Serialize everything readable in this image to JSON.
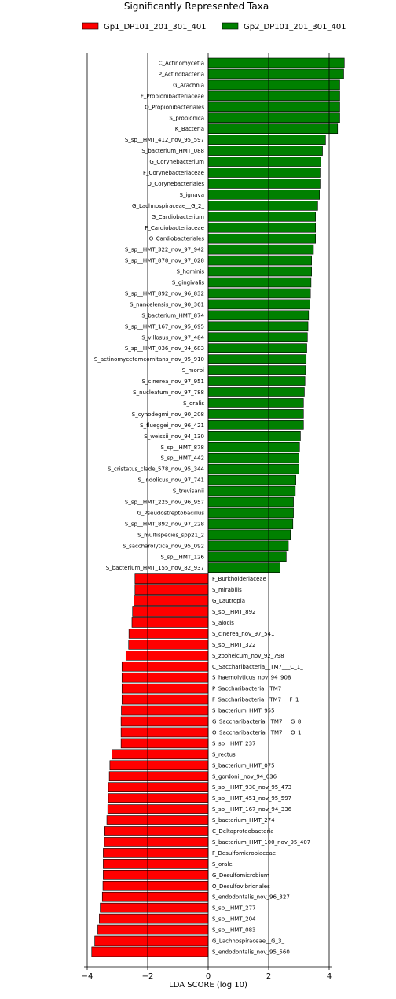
{
  "chart_data": {
    "type": "bar",
    "orientation": "horizontal",
    "title": "Significantly Represented Taxa",
    "xlabel": "LDA SCORE (log 10)",
    "xlim": [
      -4,
      4
    ],
    "xticks": [
      -4,
      -2,
      0,
      2,
      4
    ],
    "xtick_labels": [
      "−4",
      "−2",
      "0",
      "2",
      "4"
    ],
    "grid": "vertical at -4, -2, 2, 4",
    "legend_position": "top",
    "series": [
      {
        "name": "Gp1_DP101_201_301_401",
        "color": "#ff0000",
        "bars": [
          {
            "label": "F_Burkholderiaceae",
            "value": -2.42
          },
          {
            "label": "S_mirabilis",
            "value": -2.42
          },
          {
            "label": "G_Lautropia",
            "value": -2.45
          },
          {
            "label": "S_sp__HMT_892",
            "value": -2.5
          },
          {
            "label": "S_alocis",
            "value": -2.52
          },
          {
            "label": "S_cinerea_nov_97_541",
            "value": -2.62
          },
          {
            "label": "S_sp__HMT_322",
            "value": -2.63
          },
          {
            "label": "S_zoohelcum_nov_92_798",
            "value": -2.72
          },
          {
            "label": "C_Saccharibacteria__TM7___C_1_",
            "value": -2.85
          },
          {
            "label": "S_haemolyticus_nov_94_908",
            "value": -2.85
          },
          {
            "label": "P_Saccharibacteria__TM7_",
            "value": -2.85
          },
          {
            "label": "F_Saccharibacteria__TM7___F_1_",
            "value": -2.85
          },
          {
            "label": "S_bacterium_HMT_955",
            "value": -2.87
          },
          {
            "label": "G_Saccharibacteria__TM7___G_8_",
            "value": -2.88
          },
          {
            "label": "O_Saccharibacteria__TM7___O_1_",
            "value": -2.88
          },
          {
            "label": "S_sp__HMT_237",
            "value": -2.88
          },
          {
            "label": "S_rectus",
            "value": -3.18
          },
          {
            "label": "S_bacterium_HMT_075",
            "value": -3.25
          },
          {
            "label": "S_gordonii_nov_94_036",
            "value": -3.27
          },
          {
            "label": "S_sp__HMT_930_nov_95_473",
            "value": -3.3
          },
          {
            "label": "S_sp__HMT_451_nov_95_597",
            "value": -3.3
          },
          {
            "label": "S_sp__HMT_167_nov_94_336",
            "value": -3.32
          },
          {
            "label": "S_bacterium_HMT_274",
            "value": -3.35
          },
          {
            "label": "C_Deltaproteobacteria",
            "value": -3.42
          },
          {
            "label": "S_bacterium_HMT_100_nov_95_407",
            "value": -3.43
          },
          {
            "label": "F_Desulfomicrobiaceae",
            "value": -3.47
          },
          {
            "label": "S_orale",
            "value": -3.47
          },
          {
            "label": "G_Desulfomicrobium",
            "value": -3.47
          },
          {
            "label": "O_Desulfovibrionales",
            "value": -3.48
          },
          {
            "label": "S_endodontalis_nov_96_327",
            "value": -3.5
          },
          {
            "label": "S_sp__HMT_277",
            "value": -3.57
          },
          {
            "label": "S_sp__HMT_204",
            "value": -3.6
          },
          {
            "label": "S_sp__HMT_083",
            "value": -3.65
          },
          {
            "label": "G_Lachnospiraceae__G_3_",
            "value": -3.75
          },
          {
            "label": "S_endodontalis_nov_95_560",
            "value": -3.85
          }
        ]
      },
      {
        "name": "Gp2_DP101_201_301_401",
        "color": "#008000",
        "bars": [
          {
            "label": "C_Actinomycetia",
            "value": 4.5
          },
          {
            "label": "P_Actinobacteria",
            "value": 4.48
          },
          {
            "label": "G_Arachnia",
            "value": 4.35
          },
          {
            "label": "F_Propionibacteriaceae",
            "value": 4.35
          },
          {
            "label": "O_Propionibacteriales",
            "value": 4.35
          },
          {
            "label": "S_propionica",
            "value": 4.35
          },
          {
            "label": "K_Bacteria",
            "value": 4.28
          },
          {
            "label": "S_sp__HMT_412_nov_95_597",
            "value": 3.88
          },
          {
            "label": "S_bacterium_HMT_088",
            "value": 3.78
          },
          {
            "label": "G_Corynebacterium",
            "value": 3.72
          },
          {
            "label": "F_Corynebacteriaceae",
            "value": 3.7
          },
          {
            "label": "O_Corynebacteriales",
            "value": 3.7
          },
          {
            "label": "S_ignava",
            "value": 3.68
          },
          {
            "label": "G_Lachnospiraceae__G_2_",
            "value": 3.62
          },
          {
            "label": "G_Cardiobacterium",
            "value": 3.55
          },
          {
            "label": "F_Cardiobacteriaceae",
            "value": 3.55
          },
          {
            "label": "O_Cardiobacteriales",
            "value": 3.55
          },
          {
            "label": "S_sp__HMT_322_nov_97_942",
            "value": 3.48
          },
          {
            "label": "S_sp__HMT_878_nov_97_028",
            "value": 3.42
          },
          {
            "label": "S_hominis",
            "value": 3.42
          },
          {
            "label": "S_gingivalis",
            "value": 3.4
          },
          {
            "label": "S_sp__HMT_892_nov_96_832",
            "value": 3.38
          },
          {
            "label": "S_nancelensis_nov_90_361",
            "value": 3.36
          },
          {
            "label": "S_bacterium_HMT_874",
            "value": 3.32
          },
          {
            "label": "S_sp__HMT_167_nov_95_695",
            "value": 3.3
          },
          {
            "label": "S_villosus_nov_97_484",
            "value": 3.28
          },
          {
            "label": "S_sp__HMT_036_nov_94_683",
            "value": 3.26
          },
          {
            "label": "S_actinomycetemcomitans_nov_95_910",
            "value": 3.24
          },
          {
            "label": "S_morbi",
            "value": 3.22
          },
          {
            "label": "S_cinerea_nov_97_951",
            "value": 3.2
          },
          {
            "label": "S_nucleatum_nov_97_788",
            "value": 3.18
          },
          {
            "label": "S_oralis",
            "value": 3.15
          },
          {
            "label": "S_cynodegmi_nov_90_208",
            "value": 3.15
          },
          {
            "label": "S_flueggei_nov_96_421",
            "value": 3.15
          },
          {
            "label": "S_weissii_nov_94_130",
            "value": 3.05
          },
          {
            "label": "S_sp__HMT_878",
            "value": 3.02
          },
          {
            "label": "S_sp__HMT_442",
            "value": 3.0
          },
          {
            "label": "S_cristatus_clade_578_nov_95_344",
            "value": 3.0
          },
          {
            "label": "S_indolicus_nov_97_741",
            "value": 2.9
          },
          {
            "label": "S_trevisanii",
            "value": 2.88
          },
          {
            "label": "S_sp__HMT_225_nov_96_957",
            "value": 2.82
          },
          {
            "label": "G_Pseudostreptobacillus",
            "value": 2.82
          },
          {
            "label": "S_sp__HMT_892_nov_97_228",
            "value": 2.8
          },
          {
            "label": "S_multispecies_spp21_2",
            "value": 2.72
          },
          {
            "label": "S_saccharolytica_nov_95_092",
            "value": 2.65
          },
          {
            "label": "S_sp__HMT_126",
            "value": 2.58
          },
          {
            "label": "S_bacterium_HMT_155_nov_82_937",
            "value": 2.38
          }
        ]
      }
    ]
  }
}
